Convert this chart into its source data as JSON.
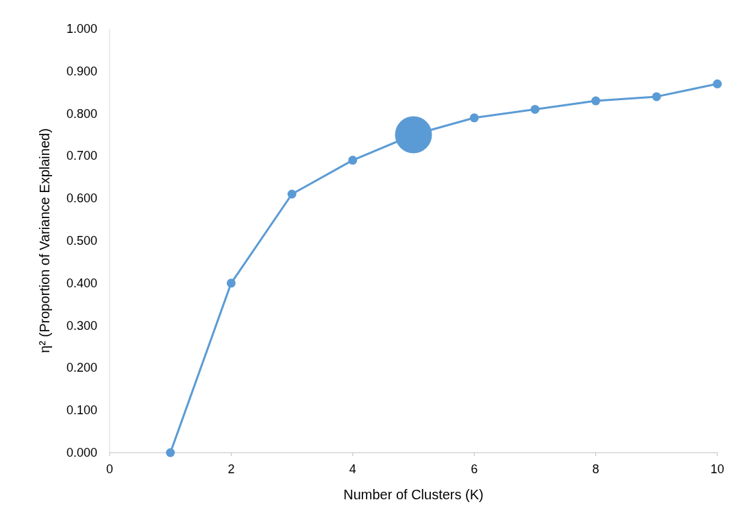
{
  "chart_data": {
    "type": "line",
    "xlabel": "Number of Clusters (K)",
    "ylabel": "η² (Proportion of Variance Explained)",
    "x": [
      1,
      2,
      3,
      4,
      5,
      6,
      7,
      8,
      9,
      10
    ],
    "series": [
      {
        "color": "#5b9bd5",
        "values": [
          0,
          0.4,
          0.61,
          0.69,
          0.75,
          0.79,
          0.81,
          0.83,
          0.84,
          0.87
        ]
      },
      {
        "type": "bubble",
        "color": "#5b9bd5",
        "x": [
          5
        ],
        "values": [
          0.75
        ],
        "sizes": [
          1
        ]
      }
    ],
    "marker": "circle",
    "line_style": "solid",
    "xlim": [
      0,
      10
    ],
    "xticks": [
      0,
      2,
      4,
      6,
      8,
      10
    ],
    "ylim": [
      0,
      1
    ],
    "yticks": [
      {
        "value": 0,
        "label": "0.000"
      },
      {
        "value": 0.1,
        "label": "0.100"
      },
      {
        "value": 0.2,
        "label": "0.200"
      },
      {
        "value": 0.3,
        "label": "0.300"
      },
      {
        "value": 0.4,
        "label": "0.400"
      },
      {
        "value": 0.5,
        "label": "0.500"
      },
      {
        "value": 0.6,
        "label": "0.600"
      },
      {
        "value": 0.7,
        "label": "0.700"
      },
      {
        "value": 0.8,
        "label": "0.800"
      },
      {
        "value": 0.9,
        "label": "0.900"
      },
      {
        "value": 1,
        "label": "1.000"
      }
    ]
  }
}
